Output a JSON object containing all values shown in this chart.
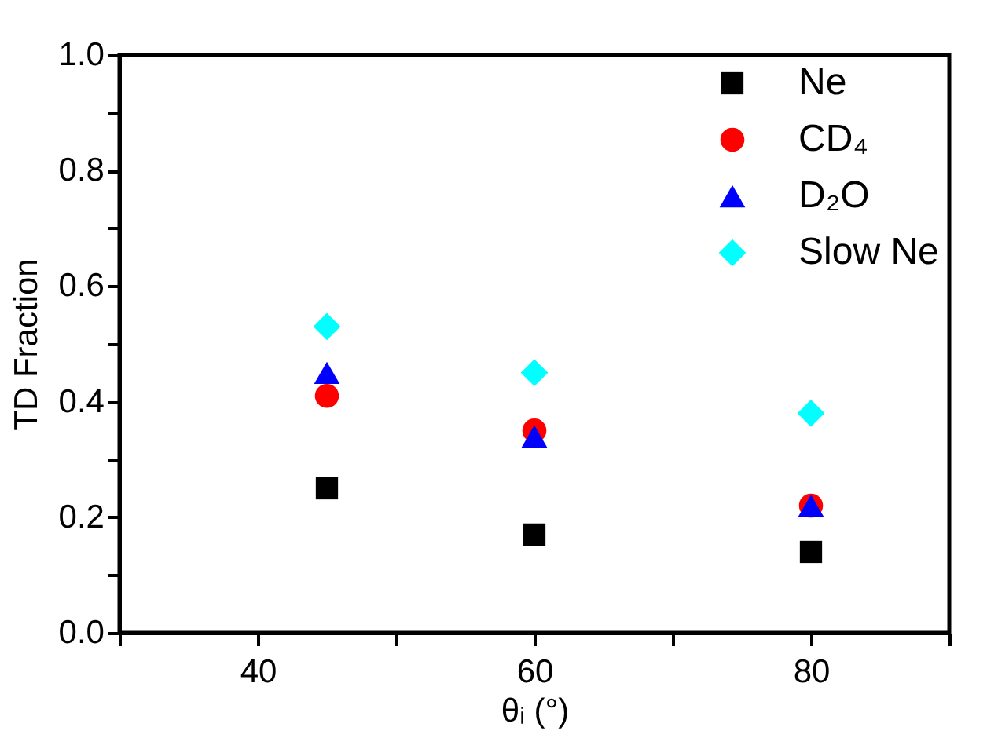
{
  "chart_data": {
    "type": "scatter",
    "xlabel": "θᵢ (°)",
    "ylabel": "TD Fraction",
    "x": [
      45,
      60,
      80
    ],
    "series": [
      {
        "name": "Ne",
        "color": "#000000",
        "marker": "square",
        "values": [
          0.25,
          0.17,
          0.14
        ]
      },
      {
        "name": "CD₄",
        "color": "#ff0000",
        "marker": "circle",
        "values": [
          0.41,
          0.35,
          0.22
        ]
      },
      {
        "name": "D₂O",
        "color": "#0000ff",
        "marker": "triangle",
        "values": [
          0.45,
          0.34,
          0.22
        ]
      },
      {
        "name": "Slow Ne",
        "color": "#00ffff",
        "marker": "diamond",
        "values": [
          0.53,
          0.45,
          0.38
        ]
      }
    ],
    "xlim": [
      30,
      90
    ],
    "xticks": [
      {
        "value": 30,
        "label": null
      },
      40,
      {
        "value": 50,
        "label": null
      },
      60,
      {
        "value": 70,
        "label": null
      },
      80,
      {
        "value": 90,
        "label": null
      }
    ],
    "ylim": [
      0,
      1
    ],
    "yticks": [
      {
        "value": 0,
        "label": "0.0"
      },
      {
        "value": 0.1,
        "label": null
      },
      {
        "value": 0.2,
        "label": "0.2"
      },
      {
        "value": 0.3,
        "label": null
      },
      {
        "value": 0.4,
        "label": "0.4"
      },
      {
        "value": 0.5,
        "label": null
      },
      {
        "value": 0.6,
        "label": "0.6"
      },
      {
        "value": 0.7,
        "label": null
      },
      {
        "value": 0.8,
        "label": "0.8"
      },
      {
        "value": 0.9,
        "label": null
      },
      {
        "value": 1,
        "label": "1.0"
      }
    ],
    "grid": false,
    "legend": "top right"
  }
}
